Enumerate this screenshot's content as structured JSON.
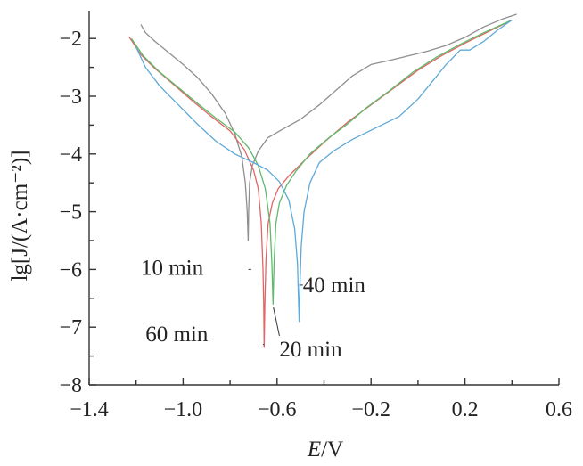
{
  "chart_data": {
    "type": "line",
    "title": "",
    "xlabel": {
      "italic": "E",
      "rest": "/V"
    },
    "ylabel": "lg[J/(A·cm⁻²)]",
    "xlim": [
      -1.4,
      0.6
    ],
    "ylim": [
      -8,
      -1.5
    ],
    "xticks": [
      -1.4,
      -1.0,
      -0.6,
      -0.2,
      0.2,
      0.6
    ],
    "xtick_labels": [
      "−1.4",
      "−1.0",
      "−0.6",
      "−0.2",
      "0.2",
      "0.6"
    ],
    "yticks": [
      -8,
      -7,
      -6,
      -5,
      -4,
      -3,
      -2
    ],
    "ytick_labels": [
      "−8",
      "−7",
      "−6",
      "−5",
      "−4",
      "−3",
      "−2"
    ],
    "grid": false,
    "series": [
      {
        "name": "10 min",
        "color": "#8f8f8f",
        "points": [
          [
            -1.18,
            -1.76
          ],
          [
            -1.16,
            -1.9
          ],
          [
            -1.12,
            -2.05
          ],
          [
            -1.06,
            -2.25
          ],
          [
            -1.0,
            -2.45
          ],
          [
            -0.94,
            -2.67
          ],
          [
            -0.88,
            -2.95
          ],
          [
            -0.82,
            -3.3
          ],
          [
            -0.78,
            -3.65
          ],
          [
            -0.75,
            -4.05
          ],
          [
            -0.735,
            -4.5
          ],
          [
            -0.727,
            -5.0
          ],
          [
            -0.723,
            -5.5
          ],
          [
            -0.721,
            -5.0
          ],
          [
            -0.717,
            -4.5
          ],
          [
            -0.705,
            -4.2
          ],
          [
            -0.68,
            -3.95
          ],
          [
            -0.64,
            -3.72
          ],
          [
            -0.58,
            -3.58
          ],
          [
            -0.5,
            -3.4
          ],
          [
            -0.42,
            -3.15
          ],
          [
            -0.35,
            -2.9
          ],
          [
            -0.28,
            -2.65
          ],
          [
            -0.2,
            -2.45
          ],
          [
            -0.12,
            -2.38
          ],
          [
            -0.04,
            -2.3
          ],
          [
            0.04,
            -2.22
          ],
          [
            0.12,
            -2.12
          ],
          [
            0.2,
            -1.98
          ],
          [
            0.28,
            -1.8
          ],
          [
            0.36,
            -1.66
          ],
          [
            0.42,
            -1.58
          ]
        ]
      },
      {
        "name": "60 min",
        "color": "#e06666",
        "points": [
          [
            -1.23,
            -1.97
          ],
          [
            -1.18,
            -2.28
          ],
          [
            -1.12,
            -2.52
          ],
          [
            -1.04,
            -2.8
          ],
          [
            -0.96,
            -3.08
          ],
          [
            -0.88,
            -3.35
          ],
          [
            -0.8,
            -3.6
          ],
          [
            -0.74,
            -3.92
          ],
          [
            -0.7,
            -4.28
          ],
          [
            -0.68,
            -4.6
          ],
          [
            -0.667,
            -5.2
          ],
          [
            -0.66,
            -6.0
          ],
          [
            -0.657,
            -6.6
          ],
          [
            -0.655,
            -7.35
          ],
          [
            -0.652,
            -6.6
          ],
          [
            -0.647,
            -5.8
          ],
          [
            -0.638,
            -5.2
          ],
          [
            -0.62,
            -4.85
          ],
          [
            -0.595,
            -4.6
          ],
          [
            -0.55,
            -4.38
          ],
          [
            -0.48,
            -4.1
          ],
          [
            -0.4,
            -3.8
          ],
          [
            -0.3,
            -3.45
          ],
          [
            -0.2,
            -3.15
          ],
          [
            -0.1,
            -2.85
          ],
          [
            0.0,
            -2.55
          ],
          [
            0.1,
            -2.3
          ],
          [
            0.2,
            -2.08
          ],
          [
            0.3,
            -1.88
          ],
          [
            0.4,
            -1.68
          ]
        ]
      },
      {
        "name": "20 min",
        "color": "#5fba6c",
        "points": [
          [
            -1.22,
            -2.0
          ],
          [
            -1.17,
            -2.3
          ],
          [
            -1.1,
            -2.58
          ],
          [
            -1.02,
            -2.85
          ],
          [
            -0.94,
            -3.12
          ],
          [
            -0.86,
            -3.38
          ],
          [
            -0.78,
            -3.62
          ],
          [
            -0.72,
            -3.9
          ],
          [
            -0.68,
            -4.2
          ],
          [
            -0.65,
            -4.6
          ],
          [
            -0.63,
            -5.2
          ],
          [
            -0.622,
            -5.9
          ],
          [
            -0.617,
            -6.6
          ],
          [
            -0.613,
            -5.9
          ],
          [
            -0.605,
            -5.2
          ],
          [
            -0.59,
            -4.85
          ],
          [
            -0.56,
            -4.55
          ],
          [
            -0.52,
            -4.3
          ],
          [
            -0.46,
            -4.0
          ],
          [
            -0.38,
            -3.72
          ],
          [
            -0.3,
            -3.48
          ],
          [
            -0.22,
            -3.2
          ],
          [
            -0.12,
            -2.9
          ],
          [
            -0.02,
            -2.58
          ],
          [
            0.08,
            -2.32
          ],
          [
            0.18,
            -2.1
          ],
          [
            0.28,
            -1.9
          ],
          [
            0.4,
            -1.68
          ]
        ]
      },
      {
        "name": "40 min",
        "color": "#5ea9d8",
        "points": [
          [
            -1.2,
            -2.15
          ],
          [
            -1.16,
            -2.5
          ],
          [
            -1.1,
            -2.82
          ],
          [
            -1.02,
            -3.15
          ],
          [
            -0.94,
            -3.48
          ],
          [
            -0.86,
            -3.78
          ],
          [
            -0.78,
            -4.0
          ],
          [
            -0.7,
            -4.15
          ],
          [
            -0.64,
            -4.28
          ],
          [
            -0.59,
            -4.48
          ],
          [
            -0.55,
            -4.8
          ],
          [
            -0.525,
            -5.3
          ],
          [
            -0.513,
            -5.9
          ],
          [
            -0.508,
            -6.6
          ],
          [
            -0.506,
            -6.9
          ],
          [
            -0.503,
            -6.3
          ],
          [
            -0.497,
            -5.6
          ],
          [
            -0.485,
            -5.0
          ],
          [
            -0.46,
            -4.5
          ],
          [
            -0.42,
            -4.15
          ],
          [
            -0.36,
            -3.95
          ],
          [
            -0.28,
            -3.75
          ],
          [
            -0.18,
            -3.55
          ],
          [
            -0.08,
            -3.35
          ],
          [
            0.0,
            -3.05
          ],
          [
            0.06,
            -2.75
          ],
          [
            0.12,
            -2.45
          ],
          [
            0.18,
            -2.2
          ],
          [
            0.22,
            -2.2
          ],
          [
            0.28,
            -2.05
          ],
          [
            0.34,
            -1.85
          ],
          [
            0.4,
            -1.68
          ]
        ]
      }
    ],
    "annotations": [
      {
        "id": "ann-10",
        "label": "10 min",
        "target": [
          -0.722,
          -6.0
        ],
        "text_at": [
          -1.18,
          -5.97
        ],
        "anchor": "start",
        "line_to": [
          -0.71,
          -6.0
        ]
      },
      {
        "id": "ann-60",
        "label": "60 min",
        "target": [
          -0.655,
          -7.3
        ],
        "text_at": [
          -1.16,
          -7.12
        ],
        "anchor": "start",
        "line_to": [
          -0.66,
          -7.3
        ]
      },
      {
        "id": "ann-20",
        "label": "20 min",
        "target": [
          -0.616,
          -6.65
        ],
        "text_at": [
          -0.59,
          -7.38
        ],
        "anchor": "start",
        "line_to": [
          -0.59,
          -7.15
        ]
      },
      {
        "id": "ann-40",
        "label": "40 min",
        "target": [
          -0.506,
          -6.27
        ],
        "text_at": [
          -0.49,
          -6.27
        ],
        "anchor": "start",
        "line_to": [
          -0.49,
          -6.27
        ]
      }
    ]
  }
}
